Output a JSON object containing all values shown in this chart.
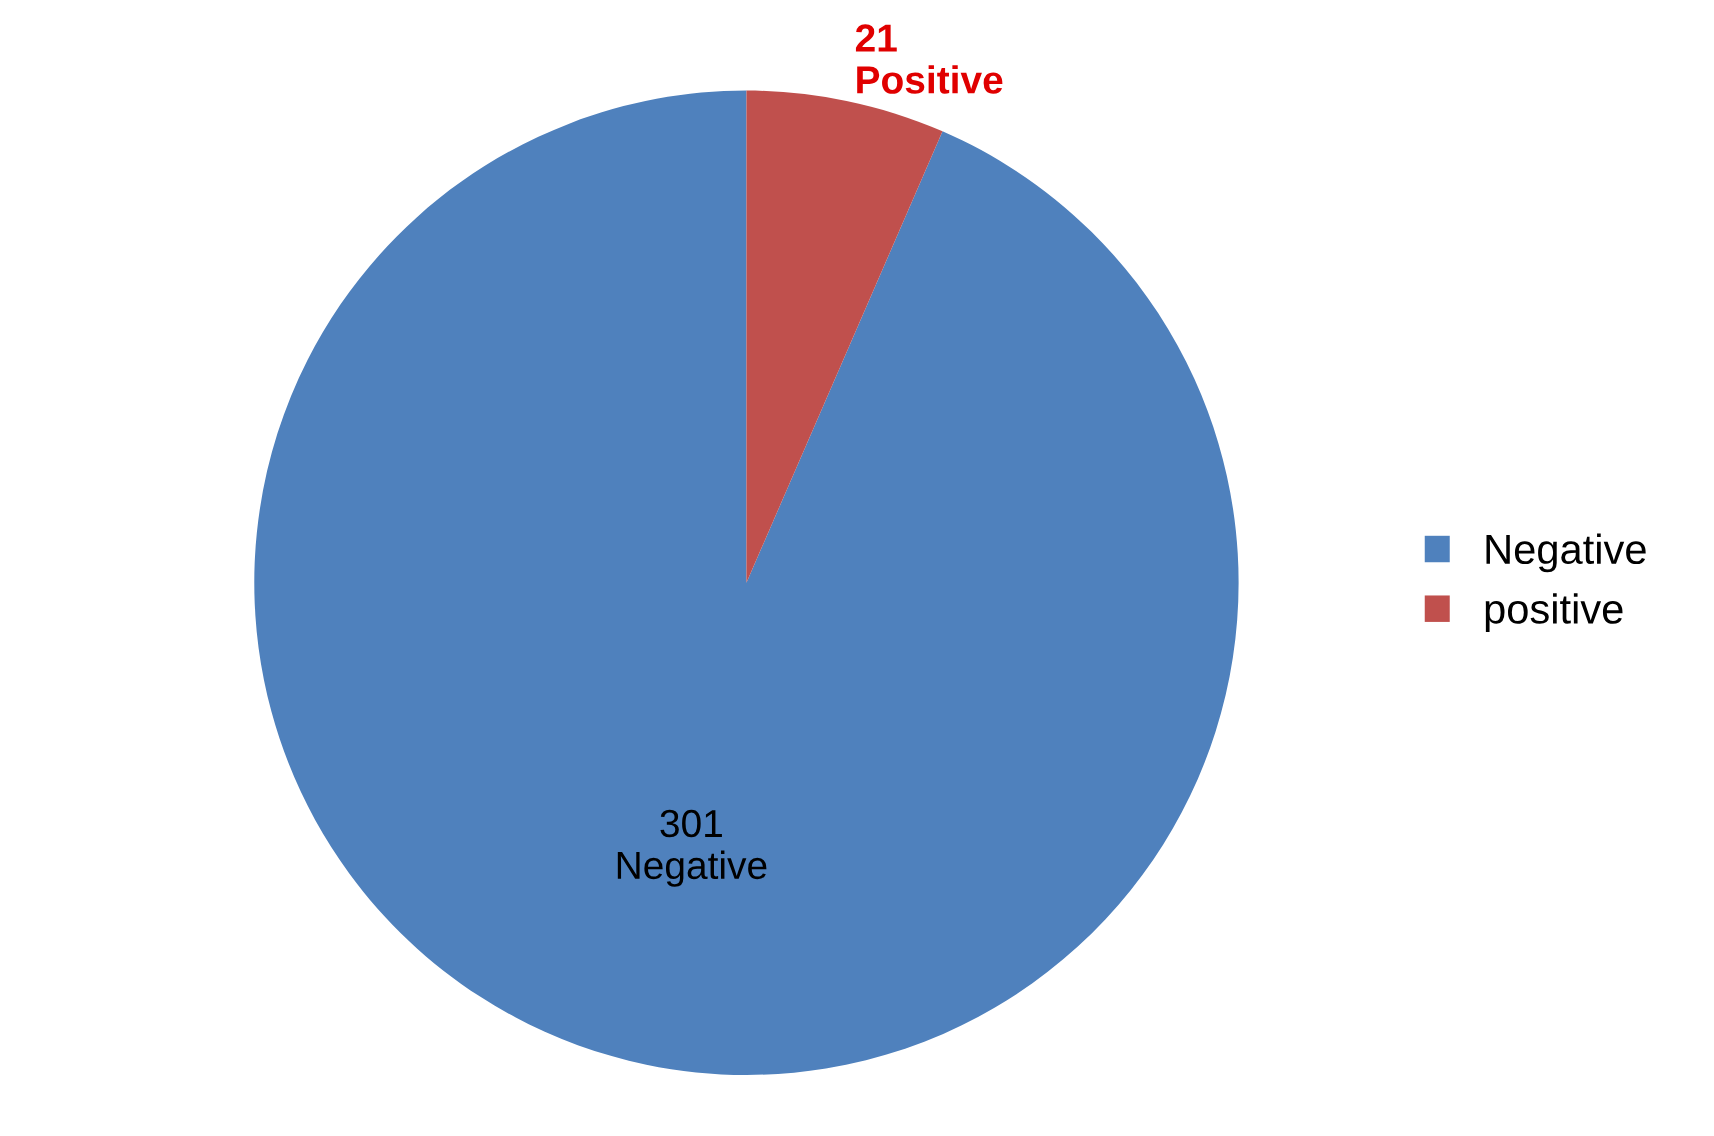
{
  "chart_data": {
    "type": "pie",
    "categories": [
      "Negative",
      "positive"
    ],
    "values": [
      301,
      21
    ],
    "colors": [
      "#4f81bd",
      "#c0504d"
    ],
    "value_labels": [
      "301\nNegative",
      "21\nPositive"
    ],
    "legend": "right"
  }
}
